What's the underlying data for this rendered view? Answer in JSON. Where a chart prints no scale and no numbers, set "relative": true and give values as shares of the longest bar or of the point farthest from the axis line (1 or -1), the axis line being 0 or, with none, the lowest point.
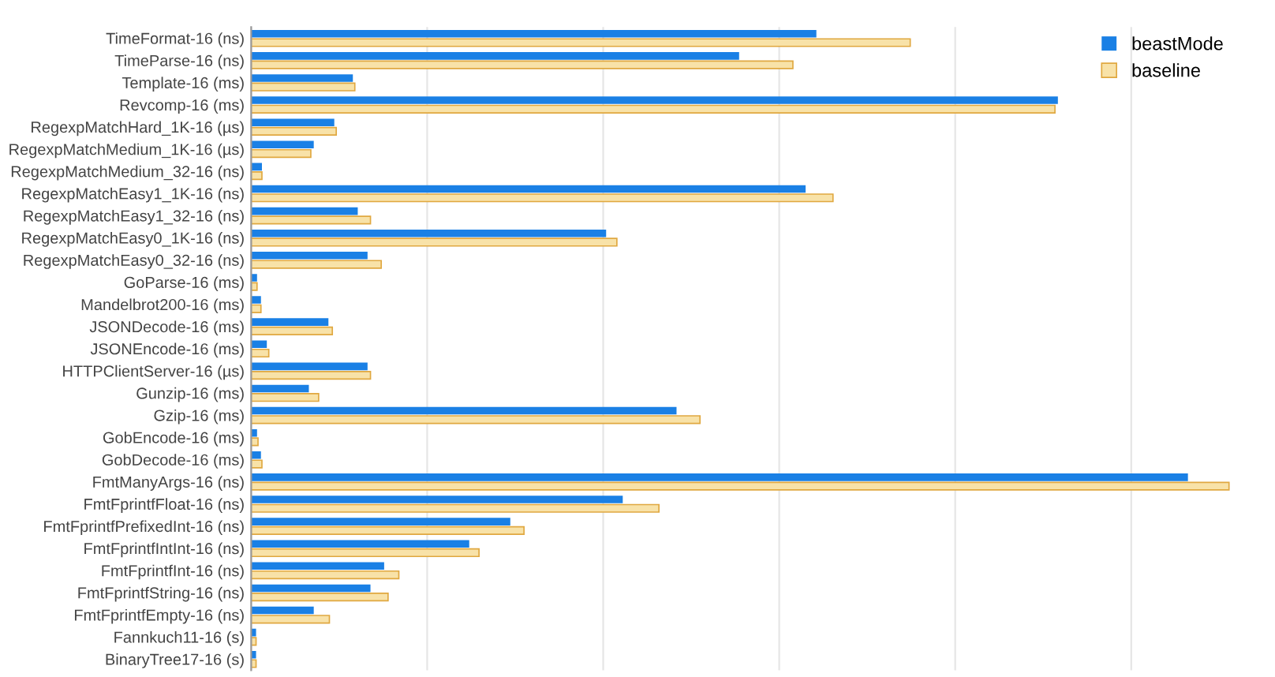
{
  "chart_data": {
    "type": "bar",
    "orientation": "horizontal",
    "relative": true,
    "grid": "x",
    "legend": "top right",
    "categories": [
      "TimeFormat-16 (ns)",
      "TimeParse-16 (ns)",
      "Template-16 (ms)",
      "Revcomp-16 (ms)",
      "RegexpMatchHard_1K-16 (µs)",
      "RegexpMatchMedium_1K-16 (µs)",
      "RegexpMatchMedium_32-16 (ns)",
      "RegexpMatchEasy1_1K-16 (ns)",
      "RegexpMatchEasy1_32-16 (ns)",
      "RegexpMatchEasy0_1K-16 (ns)",
      "RegexpMatchEasy0_32-16 (ns)",
      "GoParse-16 (ms)",
      "Mandelbrot200-16 (ms)",
      "JSONDecode-16 (ms)",
      "JSONEncode-16 (ms)",
      "HTTPClientServer-16 (µs)",
      "Gunzip-16 (ms)",
      "Gzip-16 (ms)",
      "GobEncode-16 (ms)",
      "GobDecode-16 (ms)",
      "FmtManyArgs-16 (ns)",
      "FmtFprintfFloat-16 (ns)",
      "FmtFprintfPrefixedInt-16 (ns)",
      "FmtFprintfIntInt-16 (ns)",
      "FmtFprintfInt-16 (ns)",
      "FmtFprintfString-16 (ns)",
      "FmtFprintfEmpty-16 (ns)",
      "Fannkuch11-16 (s)",
      "BinaryTree17-16 (s)"
    ],
    "series": [
      {
        "name": "beastMode",
        "color": "#1a80e5",
        "values": [
          0.578,
          0.499,
          0.104,
          0.825,
          0.085,
          0.064,
          0.011,
          0.567,
          0.109,
          0.363,
          0.119,
          0.006,
          0.01,
          0.079,
          0.016,
          0.119,
          0.059,
          0.435,
          0.006,
          0.01,
          0.958,
          0.38,
          0.265,
          0.223,
          0.136,
          0.122,
          0.064,
          0.005,
          0.005
        ]
      },
      {
        "name": "baseline",
        "color": "#f8e2a8",
        "values": [
          0.674,
          0.554,
          0.106,
          0.822,
          0.087,
          0.061,
          0.011,
          0.595,
          0.122,
          0.374,
          0.133,
          0.006,
          0.01,
          0.083,
          0.018,
          0.122,
          0.069,
          0.459,
          0.007,
          0.011,
          1.0,
          0.417,
          0.279,
          0.233,
          0.151,
          0.14,
          0.08,
          0.005,
          0.005
        ]
      }
    ]
  }
}
